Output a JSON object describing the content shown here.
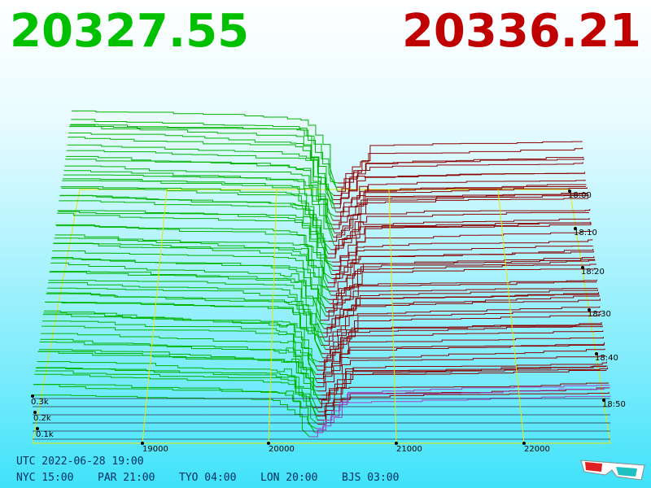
{
  "header": {
    "bid": "20327.55",
    "ask": "20336.21"
  },
  "price_axis": {
    "ticks": [
      "19000",
      "20000",
      "21000",
      "22000"
    ]
  },
  "time_axis": {
    "ticks": [
      "18:00",
      "18:10",
      "18:20",
      "18:30",
      "18:40",
      "18:50"
    ]
  },
  "depth_axis": {
    "ticks": [
      "0.3k",
      "0.2k",
      "0.1k"
    ]
  },
  "footer": {
    "utc": "UTC 2022-06-28 19:00",
    "zones": [
      "NYC 15:00",
      "PAR 21:00",
      "TYO 04:00",
      "LON 20:00",
      "BJS 03:00"
    ]
  }
}
